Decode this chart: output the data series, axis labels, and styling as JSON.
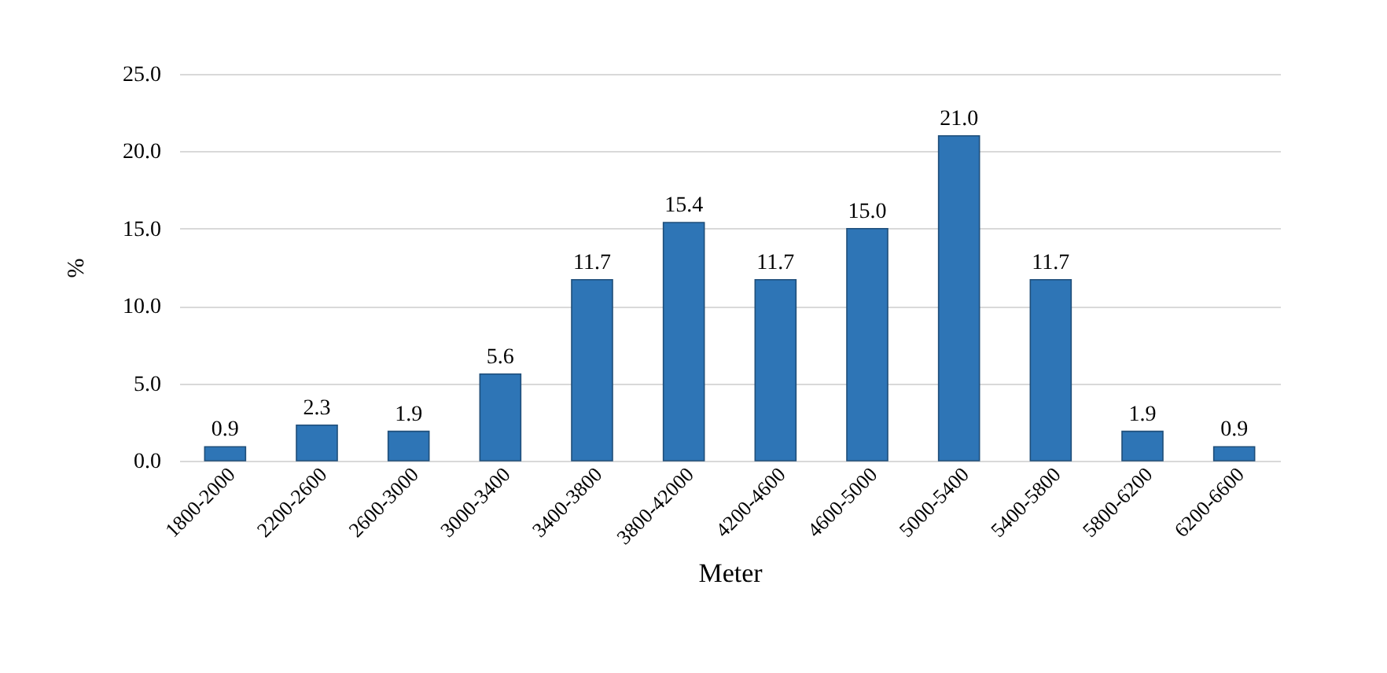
{
  "chart_data": {
    "type": "bar",
    "xlabel": "Meter",
    "ylabel": "%",
    "categories": [
      "1800-2000",
      "2200-2600",
      "2600-3000",
      "3000-3400",
      "3400-3800",
      "3800-42000",
      "4200-4600",
      "4600-5000",
      "5000-5400",
      "5400-5800",
      "5800-6200",
      "6200-6600"
    ],
    "values": [
      0.9,
      2.3,
      1.9,
      5.6,
      11.7,
      15.4,
      11.7,
      15.0,
      21.0,
      11.7,
      1.9,
      0.9
    ],
    "value_labels": [
      "0.9",
      "2.3",
      "1.9",
      "5.6",
      "11.7",
      "15.4",
      "11.7",
      "15.0",
      "21.0",
      "11.7",
      "1.9",
      "0.9"
    ],
    "color": "#2e75b6",
    "ylim": [
      0,
      25
    ],
    "yticks": [
      {
        "value": 0,
        "label": "0.0"
      },
      {
        "value": 5,
        "label": "5.0"
      },
      {
        "value": 10,
        "label": "10.0"
      },
      {
        "value": 15,
        "label": "15.0"
      },
      {
        "value": 20,
        "label": "20.0"
      },
      {
        "value": 25,
        "label": "25.0"
      }
    ],
    "grid": "y"
  }
}
